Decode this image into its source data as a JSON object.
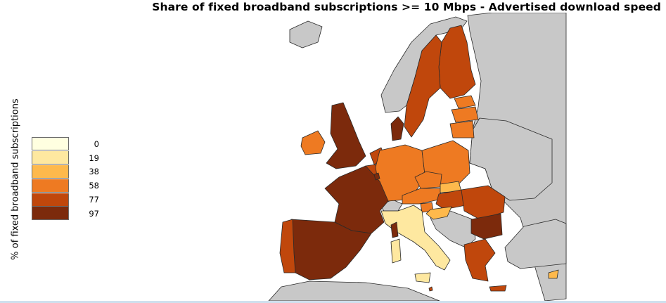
{
  "title": "Share of fixed broadband subscriptions >= 10 Mbps - Advertised download speed",
  "axis_label": "% of fixed broadband subscriptions",
  "legend": [
    {
      "value": "0",
      "color": "#FFFFE0"
    },
    {
      "value": "19",
      "color": "#FEE8A0"
    },
    {
      "value": "38",
      "color": "#FEB94C"
    },
    {
      "value": "58",
      "color": "#EE7A22"
    },
    {
      "value": "77",
      "color": "#C0470C"
    },
    {
      "value": "97",
      "color": "#7C2A0C"
    }
  ],
  "colors": {
    "no_data": "#C8C8C8",
    "sea": "#FFFFFF",
    "border": "#2A2A2A",
    "frame": "#CFE0EE"
  }
}
